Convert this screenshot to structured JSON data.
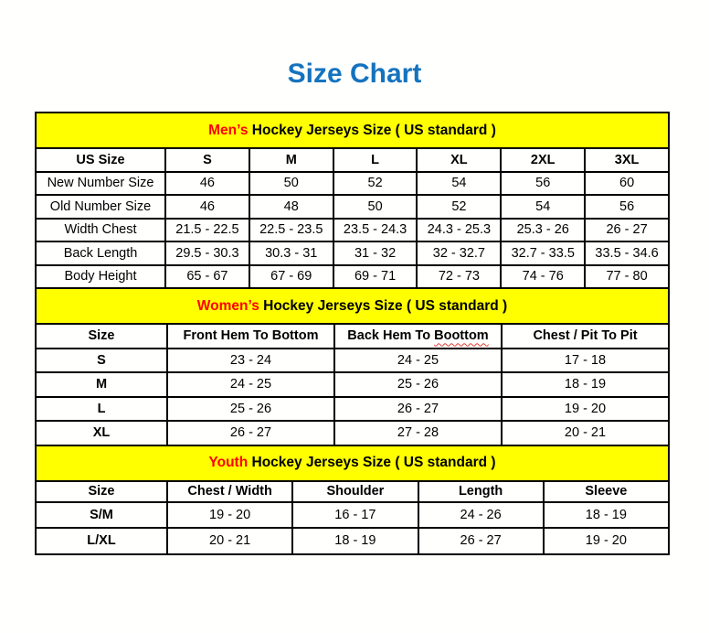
{
  "page": {
    "title": "Size Chart",
    "title_color": "#1573be"
  },
  "colors": {
    "banner_background": "#ffff00",
    "banner_highlight": "#ff0000",
    "border": "#000000",
    "squiggle": "#e03c31"
  },
  "sections": [
    {
      "id": "mens",
      "title_highlight": "Men’s",
      "title_rest": " Hockey Jerseys Size ( US standard )",
      "columns": [
        "US Size",
        "S",
        "M",
        "L",
        "XL",
        "2XL",
        "3XL"
      ],
      "rows": [
        [
          "New Number Size",
          "46",
          "50",
          "52",
          "54",
          "56",
          "60"
        ],
        [
          "Old Number Size",
          "46",
          "48",
          "50",
          "52",
          "54",
          "56"
        ],
        [
          "Width Chest",
          "21.5 - 22.5",
          "22.5 - 23.5",
          "23.5 - 24.3",
          "24.3 - 25.3",
          "25.3 - 26",
          "26 - 27"
        ],
        [
          "Back Length",
          "29.5 - 30.3",
          "30.3 - 31",
          "31 - 32",
          "32 - 32.7",
          "32.7 - 33.5",
          "33.5 - 34.6"
        ],
        [
          "Body Height",
          "65 - 67",
          "67 - 69",
          "69 - 71",
          "72 - 73",
          "74 - 76",
          "77 - 80"
        ]
      ],
      "bold_first_column": false
    },
    {
      "id": "womens",
      "title_highlight": "Women’s",
      "title_rest": " Hockey Jerseys Size ( US standard )",
      "columns": [
        "Size",
        "Front Hem To Bottom",
        {
          "text": "Back Hem To ",
          "squiggle": "Boottom"
        },
        "Chest / Pit To Pit"
      ],
      "rows": [
        [
          "S",
          "23 - 24",
          "24 - 25",
          "17 - 18"
        ],
        [
          "M",
          "24 - 25",
          "25 - 26",
          "18 - 19"
        ],
        [
          "L",
          "25 - 26",
          "26 - 27",
          "19 - 20"
        ],
        [
          "XL",
          "26 - 27",
          "27 - 28",
          "20 - 21"
        ]
      ],
      "bold_first_column": true
    },
    {
      "id": "youth",
      "title_highlight": "Youth",
      "title_rest": " Hockey Jerseys Size ( US standard )",
      "columns": [
        "Size",
        "Chest / Width",
        "Shoulder",
        "Length",
        "Sleeve"
      ],
      "rows": [
        [
          "S/M",
          "19 - 20",
          "16 - 17",
          "24 - 26",
          "18 - 19"
        ],
        [
          "L/XL",
          "20 - 21",
          "18 - 19",
          "26 - 27",
          "19 - 20"
        ]
      ],
      "bold_first_column": true
    }
  ]
}
